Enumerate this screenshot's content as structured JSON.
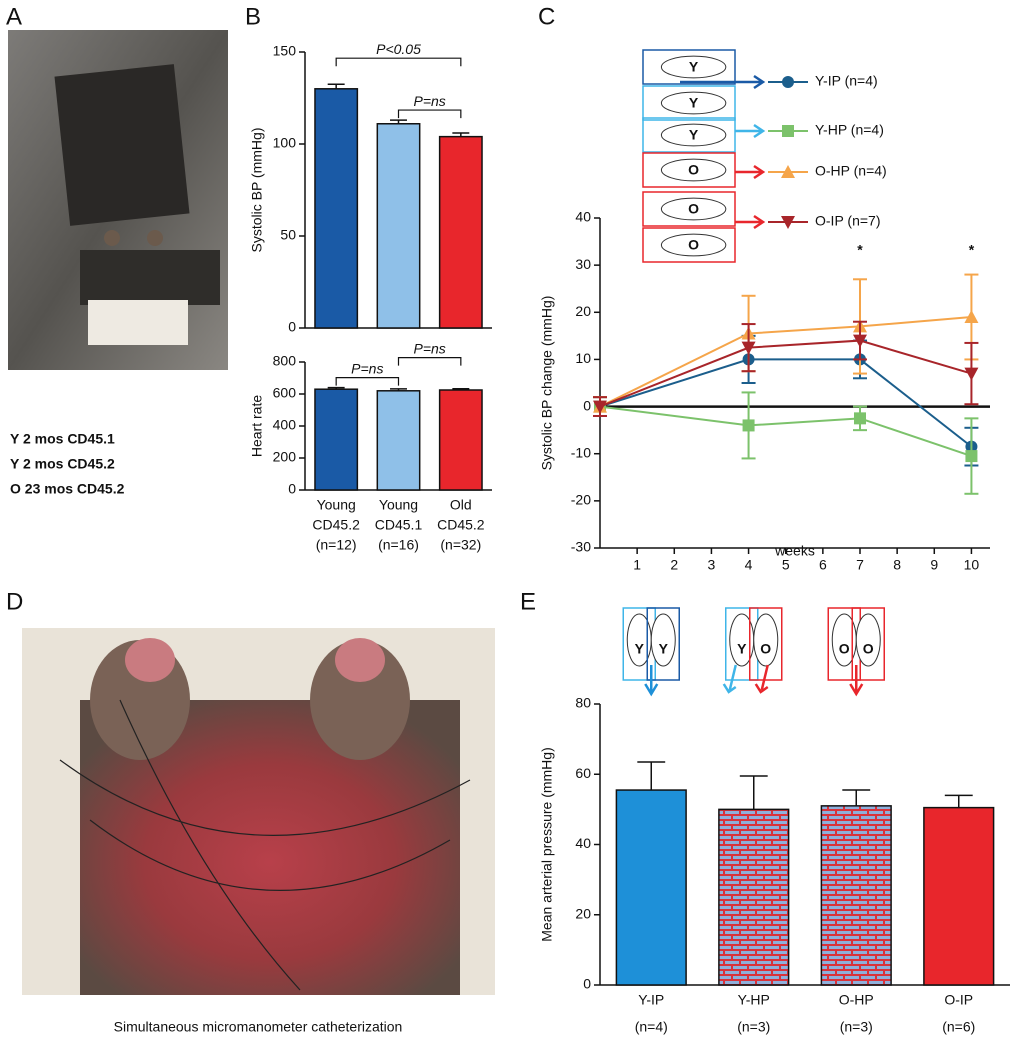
{
  "panel_labels": [
    "A",
    "B",
    "C",
    "D",
    "E"
  ],
  "panel_a": {
    "legend": [
      {
        "text": "Y 2 mos CD45.1",
        "color": "#3fb5e8"
      },
      {
        "text": "Y 2 mos CD45.2",
        "color": "#1a5aa6"
      },
      {
        "text": "O 23 mos CD45.2",
        "color": "#e8262c"
      }
    ]
  },
  "panel_d": {
    "caption": "Simultaneous micromanometer catheterization"
  },
  "chart_data": [
    {
      "type": "bar",
      "ylabel": "Systolic BP (mmHg)",
      "values": [
        130,
        111,
        104
      ],
      "errors": [
        2.5,
        2,
        2
      ],
      "colors": [
        "#1a5aa6",
        "#8fc0e8",
        "#e8262c"
      ],
      "ylim": [
        0,
        150
      ],
      "yticks": [
        0,
        50,
        100,
        150
      ],
      "significance": [
        {
          "label": "P<0.05",
          "between": [
            0,
            2
          ]
        },
        {
          "label": "P=ns",
          "between": [
            1,
            2
          ]
        }
      ]
    },
    {
      "type": "bar",
      "ylabel": "Heart rate",
      "categories": [
        [
          "Young",
          "CD45.2",
          "(n=12)"
        ],
        [
          "Young",
          "CD45.1",
          "(n=16)"
        ],
        [
          "Old",
          "CD45.2",
          "(n=32)"
        ]
      ],
      "values": [
        630,
        620,
        625
      ],
      "errors": [
        10,
        12,
        8
      ],
      "colors": [
        "#1a5aa6",
        "#8fc0e8",
        "#e8262c"
      ],
      "ylim": [
        0,
        800
      ],
      "yticks": [
        0,
        200,
        400,
        600,
        800
      ],
      "significance": [
        {
          "label": "P=ns",
          "between": [
            0,
            1
          ]
        },
        {
          "label": "P=ns",
          "between": [
            1,
            2
          ]
        }
      ]
    },
    {
      "type": "line",
      "xlabel": "weeks",
      "ylabel": "Systolic BP change (mmHg)",
      "x": [
        0,
        4,
        7,
        10
      ],
      "xlim": [
        0,
        10.5
      ],
      "xticks": [
        1,
        2,
        3,
        4,
        5,
        6,
        7,
        8,
        9,
        10
      ],
      "ylim": [
        -30,
        40
      ],
      "yticks": [
        -30,
        -20,
        -10,
        0,
        10,
        20,
        30,
        40
      ],
      "series": [
        {
          "name": "Y-IP (n=4)",
          "color": "#1b5e8c",
          "marker": "circle",
          "icon": [
            "Y",
            "Y"
          ],
          "values": [
            0,
            10,
            10,
            -8.5
          ],
          "errors": [
            2,
            5,
            4,
            4
          ]
        },
        {
          "name": "Y-HP (n=4)",
          "color": "#7cc26b",
          "marker": "square",
          "icon": [
            "Y"
          ],
          "values": [
            0,
            -4,
            -2.5,
            -10.5
          ],
          "errors": [
            2,
            7,
            2.5,
            8
          ]
        },
        {
          "name": "O-HP (n=4)",
          "color": "#f5a54a",
          "marker": "triangle",
          "icon": [
            "O"
          ],
          "values": [
            0,
            15.5,
            17,
            19
          ],
          "errors": [
            2,
            8,
            10,
            9
          ]
        },
        {
          "name": "O-IP (n=7)",
          "color": "#a8252a",
          "marker": "triangle-down",
          "icon": [
            "O",
            "O"
          ],
          "values": [
            0,
            12.5,
            14,
            7
          ],
          "errors": [
            2,
            5,
            4,
            6.5
          ]
        }
      ],
      "annotations": [
        {
          "text": "*",
          "x": 7,
          "y": 33
        },
        {
          "text": "*",
          "x": 10,
          "y": 33
        }
      ]
    },
    {
      "type": "bar",
      "ylabel": "Mean arterial pressure (mmHg)",
      "categories": [
        [
          "Y-IP",
          "(n=4)"
        ],
        [
          "Y-HP",
          "(n=3)"
        ],
        [
          "O-HP",
          "(n=3)"
        ],
        [
          "O-IP",
          "(n=6)"
        ]
      ],
      "values": [
        55.5,
        50,
        51,
        50.5
      ],
      "errors": [
        8,
        9.5,
        4.5,
        3.5
      ],
      "colors": [
        "#1e90d8",
        "#8fb0dc",
        "#8fb0dc",
        "#e8262c"
      ],
      "patterns": [
        null,
        "brick",
        "brick",
        null
      ],
      "icons": [
        [
          "Y",
          "Y"
        ],
        [
          "Y",
          "O"
        ],
        [
          "O",
          "O"
        ]
      ],
      "ylim": [
        0,
        80
      ],
      "yticks": [
        0,
        20,
        40,
        60,
        80
      ]
    }
  ]
}
